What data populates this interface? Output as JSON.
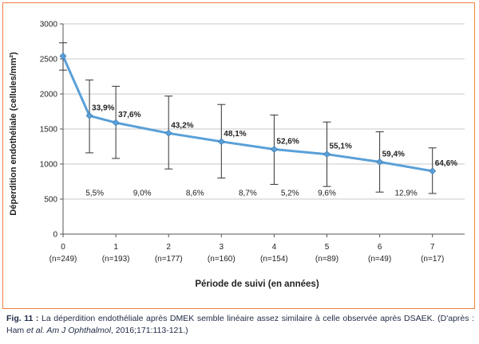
{
  "chart_data": {
    "type": "line",
    "title": "",
    "xlabel": "Période de suivi (en années)",
    "ylabel": "Déperdition endothéliale (cellules/mm²)",
    "ylim": [
      0,
      3000
    ],
    "yticks": [
      "0",
      "500",
      "1000",
      "1500",
      "2000",
      "2500",
      "3000"
    ],
    "xticks": [
      {
        "year": "0",
        "n": "(n=249)"
      },
      {
        "year": "1",
        "n": "(n=193)"
      },
      {
        "year": "2",
        "n": "(n=177)"
      },
      {
        "year": "3",
        "n": "(n=160)"
      },
      {
        "year": "4",
        "n": "(n=154)"
      },
      {
        "year": "5",
        "n": "(n=89)"
      },
      {
        "year": "6",
        "n": "(n=49)"
      },
      {
        "year": "7",
        "n": "(n=17)"
      }
    ],
    "series": [
      {
        "color": "#5aa0d8",
        "points": [
          {
            "x": 0,
            "y": 2540,
            "err_low": 2340,
            "err_high": 2730,
            "label": ""
          },
          {
            "x": 0.5,
            "y": 1690,
            "err_low": 1160,
            "err_high": 2200,
            "label": "33,9%"
          },
          {
            "x": 1,
            "y": 1590,
            "err_low": 1080,
            "err_high": 2110,
            "label": "37,6%"
          },
          {
            "x": 2,
            "y": 1440,
            "err_low": 930,
            "err_high": 1970,
            "label": "43,2%"
          },
          {
            "x": 3,
            "y": 1320,
            "err_low": 800,
            "err_high": 1850,
            "label": "48,1%"
          },
          {
            "x": 4,
            "y": 1210,
            "err_low": 710,
            "err_high": 1700,
            "label": "52,6%"
          },
          {
            "x": 5,
            "y": 1140,
            "err_low": 680,
            "err_high": 1600,
            "label": "55,1%"
          },
          {
            "x": 6,
            "y": 1030,
            "err_low": 600,
            "err_high": 1460,
            "label": "59,4%"
          },
          {
            "x": 7,
            "y": 900,
            "err_low": 580,
            "err_high": 1230,
            "label": "64,6%"
          }
        ]
      }
    ],
    "interval_labels": [
      {
        "x": 0.6,
        "text": "5,5%"
      },
      {
        "x": 1.5,
        "text": "9,0%"
      },
      {
        "x": 2.5,
        "text": "8,6%"
      },
      {
        "x": 3.5,
        "text": "8,7%"
      },
      {
        "x": 4.3,
        "text": "5,2%"
      },
      {
        "x": 5.0,
        "text": "9,6%"
      },
      {
        "x": 6.5,
        "text": "12,9%"
      }
    ],
    "interval_label_y": 550,
    "grid": true
  },
  "caption": {
    "fig_label": "Fig. 11 :",
    "text": " La déperdition endothéliale après DMEK semble linéaire assez similaire à celle observée après DSAEK. (D'après : Ham ",
    "etal": "et al.",
    "journal": " Am J Ophthalmol",
    "citation": ", 2016;171:113-121.)"
  }
}
